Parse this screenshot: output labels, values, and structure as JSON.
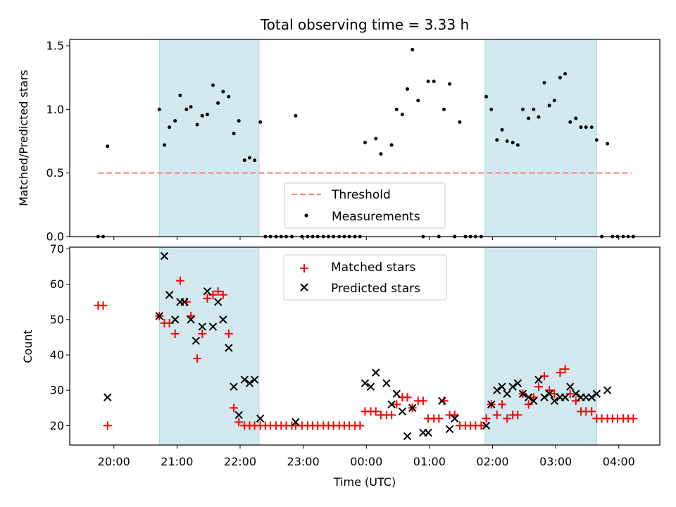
{
  "title": "Total observing time = 3.33 h",
  "xlabel": "Time (UTC)",
  "x_ticks": [
    "20:00",
    "21:00",
    "22:00",
    "23:00",
    "00:00",
    "01:00",
    "02:00",
    "03:00",
    "04:00"
  ],
  "x_tick_hours": [
    20,
    21,
    22,
    23,
    24,
    25,
    26,
    27,
    28
  ],
  "x_range": [
    19.3,
    28.65
  ],
  "shaded_intervals": [
    [
      20.72,
      22.3
    ],
    [
      25.88,
      27.65
    ]
  ],
  "colors": {
    "shade": "#d2e9f0",
    "shade_edge": "#a9d5e1",
    "threshold": "#ff7f7f",
    "matched": "#ff0000",
    "predicted": "#000000"
  },
  "chart_data": [
    {
      "type": "scatter",
      "ylabel": "Matched/Predicted stars",
      "ylim": [
        0,
        1.55
      ],
      "y_ticks": [
        "0.0",
        "0.5",
        "1.0",
        "1.5"
      ],
      "y_tick_values": [
        0,
        0.5,
        1.0,
        1.5
      ],
      "threshold": {
        "name": "Threshold",
        "value": 0.5,
        "x_start": 19.75,
        "x_end": 28.2
      },
      "legend": {
        "items": [
          "Threshold",
          "Measurements"
        ],
        "position": "lower center"
      },
      "series": [
        {
          "name": "Measurements",
          "points": [
            [
              19.75,
              0
            ],
            [
              19.83,
              0
            ],
            [
              19.9,
              0.71
            ],
            [
              20.72,
              1.0
            ],
            [
              20.8,
              0.72
            ],
            [
              20.88,
              0.86
            ],
            [
              20.97,
              0.91
            ],
            [
              21.05,
              1.11
            ],
            [
              21.15,
              1.0
            ],
            [
              21.22,
              1.02
            ],
            [
              21.32,
              0.88
            ],
            [
              21.4,
              0.95
            ],
            [
              21.48,
              0.96
            ],
            [
              21.57,
              1.19
            ],
            [
              21.65,
              1.05
            ],
            [
              21.73,
              1.14
            ],
            [
              21.82,
              1.1
            ],
            [
              21.9,
              0.81
            ],
            [
              21.98,
              0.91
            ],
            [
              22.07,
              0.6
            ],
            [
              22.15,
              0.62
            ],
            [
              22.23,
              0.6
            ],
            [
              22.32,
              0.9
            ],
            [
              22.4,
              0
            ],
            [
              22.48,
              0
            ],
            [
              22.57,
              0
            ],
            [
              22.65,
              0
            ],
            [
              22.73,
              0
            ],
            [
              22.82,
              0
            ],
            [
              22.88,
              0.95
            ],
            [
              22.98,
              0
            ],
            [
              23.07,
              0
            ],
            [
              23.15,
              0
            ],
            [
              23.23,
              0
            ],
            [
              23.32,
              0
            ],
            [
              23.4,
              0
            ],
            [
              23.48,
              0
            ],
            [
              23.57,
              0
            ],
            [
              23.65,
              0
            ],
            [
              23.73,
              0
            ],
            [
              23.82,
              0
            ],
            [
              23.9,
              0
            ],
            [
              23.98,
              0.74
            ],
            [
              24.15,
              0.77
            ],
            [
              24.23,
              0.65
            ],
            [
              24.4,
              0.72
            ],
            [
              24.48,
              1.0
            ],
            [
              24.57,
              0.96
            ],
            [
              24.65,
              1.16
            ],
            [
              24.73,
              1.47
            ],
            [
              24.82,
              1.07
            ],
            [
              24.9,
              0
            ],
            [
              24.98,
              1.22
            ],
            [
              25.07,
              1.22
            ],
            [
              25.15,
              0
            ],
            [
              25.23,
              1.0
            ],
            [
              25.32,
              1.2
            ],
            [
              25.4,
              0
            ],
            [
              25.48,
              0.9
            ],
            [
              25.57,
              0
            ],
            [
              25.65,
              0
            ],
            [
              25.73,
              0
            ],
            [
              25.82,
              0
            ],
            [
              25.9,
              1.1
            ],
            [
              25.98,
              1.0
            ],
            [
              26.07,
              0.76
            ],
            [
              26.15,
              0.84
            ],
            [
              26.23,
              0.75
            ],
            [
              26.32,
              0.74
            ],
            [
              26.4,
              0.72
            ],
            [
              26.48,
              1.0
            ],
            [
              26.57,
              0.93
            ],
            [
              26.65,
              1.0
            ],
            [
              26.73,
              0.94
            ],
            [
              26.82,
              1.21
            ],
            [
              26.9,
              1.03
            ],
            [
              26.98,
              1.07
            ],
            [
              27.07,
              1.25
            ],
            [
              27.15,
              1.28
            ],
            [
              27.23,
              0.9
            ],
            [
              27.32,
              0.93
            ],
            [
              27.4,
              0.86
            ],
            [
              27.48,
              0.86
            ],
            [
              27.57,
              0.86
            ],
            [
              27.65,
              0.76
            ],
            [
              27.73,
              0
            ],
            [
              27.82,
              0.73
            ],
            [
              27.9,
              0
            ],
            [
              27.98,
              0
            ],
            [
              28.07,
              0
            ],
            [
              28.15,
              0
            ],
            [
              28.23,
              0
            ]
          ]
        }
      ]
    },
    {
      "type": "scatter",
      "ylabel": "Count",
      "ylim": [
        14.5,
        70.5
      ],
      "y_ticks": [
        "20",
        "30",
        "40",
        "50",
        "60",
        "70"
      ],
      "y_tick_values": [
        20,
        30,
        40,
        50,
        60,
        70
      ],
      "legend": {
        "items": [
          "Matched stars",
          "Predicted stars"
        ],
        "position": "upper center"
      },
      "series": [
        {
          "name": "Matched stars",
          "marker": "+",
          "points": [
            [
              19.75,
              54
            ],
            [
              19.83,
              54
            ],
            [
              19.9,
              20
            ],
            [
              20.72,
              51
            ],
            [
              20.8,
              49
            ],
            [
              20.88,
              49
            ],
            [
              20.97,
              46
            ],
            [
              21.05,
              61
            ],
            [
              21.15,
              55
            ],
            [
              21.22,
              51
            ],
            [
              21.32,
              39
            ],
            [
              21.4,
              46
            ],
            [
              21.48,
              56
            ],
            [
              21.57,
              57
            ],
            [
              21.65,
              58
            ],
            [
              21.73,
              57
            ],
            [
              21.82,
              46
            ],
            [
              21.9,
              25
            ],
            [
              21.98,
              21
            ],
            [
              22.07,
              20
            ],
            [
              22.15,
              20
            ],
            [
              22.23,
              20
            ],
            [
              22.32,
              20
            ],
            [
              22.4,
              20
            ],
            [
              22.48,
              20
            ],
            [
              22.57,
              20
            ],
            [
              22.65,
              20
            ],
            [
              22.73,
              20
            ],
            [
              22.82,
              20
            ],
            [
              22.88,
              20
            ],
            [
              22.98,
              20
            ],
            [
              23.07,
              20
            ],
            [
              23.15,
              20
            ],
            [
              23.23,
              20
            ],
            [
              23.32,
              20
            ],
            [
              23.4,
              20
            ],
            [
              23.48,
              20
            ],
            [
              23.57,
              20
            ],
            [
              23.65,
              20
            ],
            [
              23.73,
              20
            ],
            [
              23.82,
              20
            ],
            [
              23.9,
              20
            ],
            [
              23.98,
              24
            ],
            [
              24.07,
              24
            ],
            [
              24.15,
              24
            ],
            [
              24.23,
              23
            ],
            [
              24.32,
              23
            ],
            [
              24.4,
              23
            ],
            [
              24.48,
              26
            ],
            [
              24.57,
              28
            ],
            [
              24.65,
              28
            ],
            [
              24.73,
              25
            ],
            [
              24.82,
              27
            ],
            [
              24.9,
              27
            ],
            [
              24.98,
              22
            ],
            [
              25.07,
              22
            ],
            [
              25.15,
              22
            ],
            [
              25.23,
              27
            ],
            [
              25.32,
              23
            ],
            [
              25.4,
              23
            ],
            [
              25.48,
              20
            ],
            [
              25.57,
              20
            ],
            [
              25.65,
              20
            ],
            [
              25.73,
              20
            ],
            [
              25.82,
              20
            ],
            [
              25.9,
              22
            ],
            [
              25.98,
              26
            ],
            [
              26.07,
              23
            ],
            [
              26.15,
              26
            ],
            [
              26.23,
              22
            ],
            [
              26.32,
              23
            ],
            [
              26.4,
              23
            ],
            [
              26.48,
              29
            ],
            [
              26.57,
              26
            ],
            [
              26.65,
              28
            ],
            [
              26.73,
              31
            ],
            [
              26.82,
              34
            ],
            [
              26.9,
              30
            ],
            [
              26.98,
              29
            ],
            [
              27.07,
              35
            ],
            [
              27.15,
              36
            ],
            [
              27.23,
              29
            ],
            [
              27.32,
              27
            ],
            [
              27.4,
              24
            ],
            [
              27.48,
              24
            ],
            [
              27.57,
              24
            ],
            [
              27.65,
              22
            ],
            [
              27.73,
              22
            ],
            [
              27.82,
              22
            ],
            [
              27.9,
              22
            ],
            [
              27.98,
              22
            ],
            [
              28.07,
              22
            ],
            [
              28.15,
              22
            ],
            [
              28.23,
              22
            ]
          ]
        },
        {
          "name": "Predicted stars",
          "marker": "x",
          "points": [
            [
              19.9,
              28
            ],
            [
              20.72,
              51
            ],
            [
              20.8,
              68
            ],
            [
              20.88,
              57
            ],
            [
              20.97,
              50
            ],
            [
              21.05,
              55
            ],
            [
              21.12,
              55
            ],
            [
              21.22,
              50
            ],
            [
              21.3,
              44
            ],
            [
              21.4,
              48
            ],
            [
              21.48,
              58
            ],
            [
              21.57,
              48
            ],
            [
              21.65,
              55
            ],
            [
              21.73,
              50
            ],
            [
              21.82,
              42
            ],
            [
              21.9,
              31
            ],
            [
              21.98,
              23
            ],
            [
              22.07,
              33
            ],
            [
              22.15,
              32
            ],
            [
              22.23,
              33
            ],
            [
              22.32,
              22
            ],
            [
              22.88,
              21
            ],
            [
              23.98,
              32
            ],
            [
              24.07,
              31
            ],
            [
              24.15,
              35
            ],
            [
              24.32,
              32
            ],
            [
              24.4,
              26
            ],
            [
              24.48,
              29
            ],
            [
              24.57,
              24
            ],
            [
              24.65,
              17
            ],
            [
              24.73,
              25
            ],
            [
              24.9,
              18
            ],
            [
              24.98,
              18
            ],
            [
              25.2,
              27
            ],
            [
              25.32,
              19
            ],
            [
              25.4,
              22
            ],
            [
              25.9,
              20
            ],
            [
              25.98,
              26
            ],
            [
              26.07,
              30
            ],
            [
              26.15,
              31
            ],
            [
              26.23,
              29
            ],
            [
              26.32,
              31
            ],
            [
              26.4,
              32
            ],
            [
              26.48,
              29
            ],
            [
              26.57,
              28
            ],
            [
              26.65,
              27
            ],
            [
              26.73,
              33
            ],
            [
              26.82,
              28
            ],
            [
              26.9,
              29
            ],
            [
              26.98,
              27
            ],
            [
              27.07,
              28
            ],
            [
              27.15,
              28
            ],
            [
              27.23,
              31
            ],
            [
              27.32,
              29
            ],
            [
              27.4,
              28
            ],
            [
              27.48,
              28
            ],
            [
              27.57,
              28
            ],
            [
              27.65,
              29
            ],
            [
              27.82,
              30
            ]
          ]
        }
      ]
    }
  ]
}
